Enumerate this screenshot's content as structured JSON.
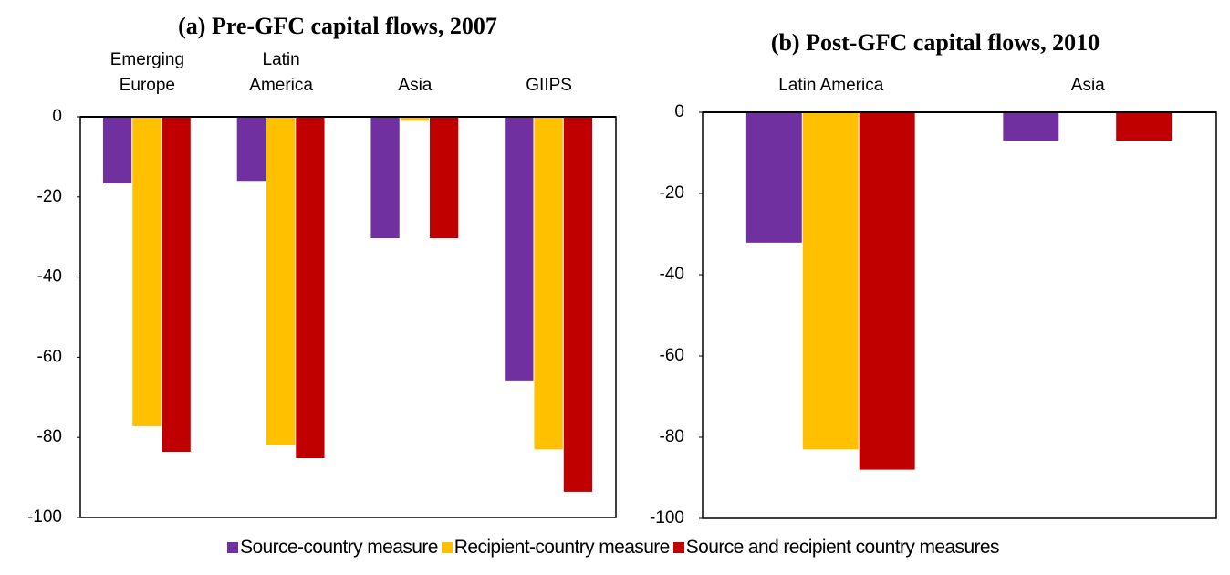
{
  "chart_data": [
    {
      "type": "bar",
      "title": "(a) Pre-GFC capital flows, 2007",
      "categories": [
        "Emerging Europe",
        "Latin America",
        "Asia",
        "GIIPS"
      ],
      "series": [
        {
          "name": "Source-country measure",
          "color": "#7030a0",
          "values": [
            -16.6,
            -16,
            -30.3,
            -65.8
          ]
        },
        {
          "name": "Recipient-country measure",
          "color": "#ffc000",
          "values": [
            -77.2,
            -82,
            -1,
            -83
          ]
        },
        {
          "name": "Source and recipient country measures",
          "color": "#c00000",
          "values": [
            -83.6,
            -85.2,
            -30.3,
            -93.6
          ]
        }
      ],
      "ylim": [
        -100,
        0
      ],
      "yticks": [
        0,
        -20,
        -40,
        -60,
        -80,
        -100
      ],
      "legend": "bottom"
    },
    {
      "type": "bar",
      "title": "(b) Post-GFC capital flows, 2010",
      "categories": [
        "Latin America",
        "Asia"
      ],
      "series": [
        {
          "color": "#7030a0",
          "values": [
            -32.1,
            -7
          ]
        },
        {
          "color": "#ffc000",
          "values": [
            -83,
            0
          ]
        },
        {
          "color": "#c00000",
          "values": [
            -88,
            -7
          ]
        }
      ],
      "ylim": [
        -100,
        0
      ],
      "yticks": [
        0,
        -20,
        -40,
        -60,
        -80,
        -100
      ]
    }
  ]
}
